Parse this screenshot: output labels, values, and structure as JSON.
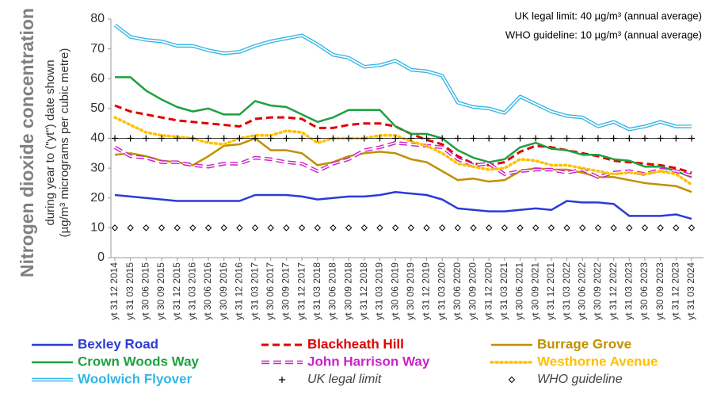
{
  "chart_data": {
    "type": "line",
    "ylabel": "Nitrogen dioxide concentration",
    "ylabel_sub": [
      "during year to (\"yt\") date shown",
      "(µg/m³ micrograms per cubic metre)"
    ],
    "annotations": [
      "UK legal limit:  40 µg/m³  (annual average)",
      "WHO guideline:  10 µg/m³  (annual average)"
    ],
    "categories": [
      "yt 31 12 2014",
      "yt 31 03 2015",
      "yt 30 06 2015",
      "yt 30 09 2015",
      "yt 31 12 2015",
      "yt 31 03 2016",
      "yt 30 06 2016",
      "yt 30 09 2016",
      "yt 31 12 2016",
      "yt 31 03 2017",
      "yt 30 06 2017",
      "yt 30 09 2017",
      "yt 31 12 2017",
      "yt 31 03 2018",
      "yt 30 06 2018",
      "yt 30 09 2018",
      "yt 31 12 2018",
      "yt 31 03 2019",
      "yt 30 06 2019",
      "yt 30 09 2019",
      "yt 31 12 2019",
      "yt 31 03 2020",
      "yt 30 06 2020",
      "yt 30 09 2020",
      "yt 31 12 2020",
      "yt 31 03 2021",
      "yt 30 06 2021",
      "yt 30 09 2021",
      "yt 31 12 2021",
      "yt 31 03 2022",
      "yt 30 06 2022",
      "yt 30 09 2022",
      "yt 31 12 2022",
      "yt 31 03 2023",
      "yt 30 06 2023",
      "yt 30 09 2023",
      "yt 31 12 2023",
      "yt 31 03 2024"
    ],
    "ylim": [
      0,
      80
    ],
    "yticks": [
      0,
      10,
      20,
      30,
      40,
      50,
      60,
      70,
      80
    ],
    "grid": false,
    "series": [
      {
        "name": "Bexley Road",
        "color": "#2b3bd8",
        "style": "solid",
        "values": [
          21,
          20.5,
          20,
          19.5,
          19,
          19,
          19,
          19,
          19,
          21,
          21,
          21,
          20.5,
          19.5,
          20,
          20.5,
          20.5,
          21,
          22,
          21.5,
          21,
          19.5,
          16.5,
          16,
          15.5,
          15.5,
          16,
          16.5,
          16,
          19,
          18.5,
          18.5,
          18,
          14,
          14,
          14,
          14.5,
          13
        ]
      },
      {
        "name": "Blackheath Hill",
        "color": "#e00000",
        "style": "dashed",
        "values": [
          51,
          49,
          48,
          47,
          46,
          45.5,
          45,
          44.5,
          44,
          46.5,
          47,
          47,
          46.5,
          43.5,
          43.5,
          44.5,
          45,
          45,
          44,
          41.5,
          39.5,
          38,
          34,
          31.5,
          31,
          32,
          35.5,
          37.5,
          37,
          36,
          35,
          34,
          32.5,
          32,
          31.5,
          31,
          30,
          28.5
        ]
      },
      {
        "name": "Burrage Grove",
        "color": "#c09000",
        "style": "solid",
        "values": [
          34.5,
          35,
          34,
          32.5,
          32,
          31,
          34,
          37.5,
          38,
          40,
          36,
          36,
          35,
          31,
          32,
          34,
          35,
          35.5,
          35,
          33,
          32,
          29,
          26,
          26.5,
          25.5,
          26,
          29,
          30,
          29.5,
          29.5,
          28.5,
          27,
          27,
          26,
          25,
          24.5,
          24,
          22
        ]
      },
      {
        "name": "Crown Woods Way",
        "color": "#1fa040",
        "style": "solid",
        "values": [
          60.5,
          60.5,
          56,
          53,
          50.5,
          49,
          50,
          48,
          48,
          52.5,
          51,
          50.5,
          48,
          45.5,
          47,
          49.5,
          49.5,
          49.5,
          44,
          41.5,
          41.5,
          40,
          36,
          33.5,
          32,
          33,
          37,
          38.5,
          36.5,
          36,
          34.5,
          34.5,
          33,
          32.5,
          30.5,
          30.5,
          29,
          27
        ]
      },
      {
        "name": "John Harrison Way",
        "color": "#cc22cc",
        "style": "double-dashed",
        "values": [
          37,
          34,
          33.5,
          32,
          32,
          31,
          30.5,
          31.5,
          31.5,
          33.5,
          33,
          32,
          31.5,
          29,
          31.5,
          33,
          36,
          37,
          38.5,
          38,
          37.5,
          37,
          33,
          31,
          31.5,
          28,
          29,
          29.5,
          29.5,
          28.5,
          29.5,
          27,
          28.5,
          29,
          28,
          29.5,
          29,
          27.5
        ]
      },
      {
        "name": "Westhorne Avenue",
        "color": "#ffc000",
        "style": "dotted",
        "values": [
          47,
          44.5,
          42,
          41,
          40.5,
          40,
          38.5,
          38,
          40,
          41,
          41,
          42.5,
          42,
          38.5,
          40,
          40,
          40,
          41,
          41,
          39,
          37.5,
          35,
          31.5,
          30.5,
          29.5,
          30,
          33,
          32.5,
          31,
          31,
          30,
          29,
          28,
          28.5,
          28,
          29,
          28,
          24.5
        ]
      },
      {
        "name": "Woolwich Flyover",
        "color": "#33b5e5",
        "style": "double",
        "values": [
          78,
          74,
          73,
          72.5,
          71,
          71,
          69.5,
          68.5,
          69,
          71,
          72.5,
          73.5,
          74.5,
          71.5,
          68,
          67,
          64,
          64.5,
          66,
          63,
          62.5,
          61,
          52,
          50.5,
          50,
          48.5,
          54,
          51.5,
          49,
          47.5,
          47,
          44,
          45.5,
          43,
          44,
          45.5,
          44,
          44
        ]
      },
      {
        "name": "UK legal limit",
        "color": "#000000",
        "style": "plus",
        "values": [
          40,
          40,
          40,
          40,
          40,
          40,
          40,
          40,
          40,
          40,
          40,
          40,
          40,
          40,
          40,
          40,
          40,
          40,
          40,
          40,
          40,
          40,
          40,
          40,
          40,
          40,
          40,
          40,
          40,
          40,
          40,
          40,
          40,
          40,
          40,
          40,
          40,
          40
        ]
      },
      {
        "name": "WHO guideline",
        "color": "#000000",
        "style": "diamond",
        "values": [
          10,
          10,
          10,
          10,
          10,
          10,
          10,
          10,
          10,
          10,
          10,
          10,
          10,
          10,
          10,
          10,
          10,
          10,
          10,
          10,
          10,
          10,
          10,
          10,
          10,
          10,
          10,
          10,
          10,
          10,
          10,
          10,
          10,
          10,
          10,
          10,
          10,
          10
        ]
      }
    ]
  }
}
